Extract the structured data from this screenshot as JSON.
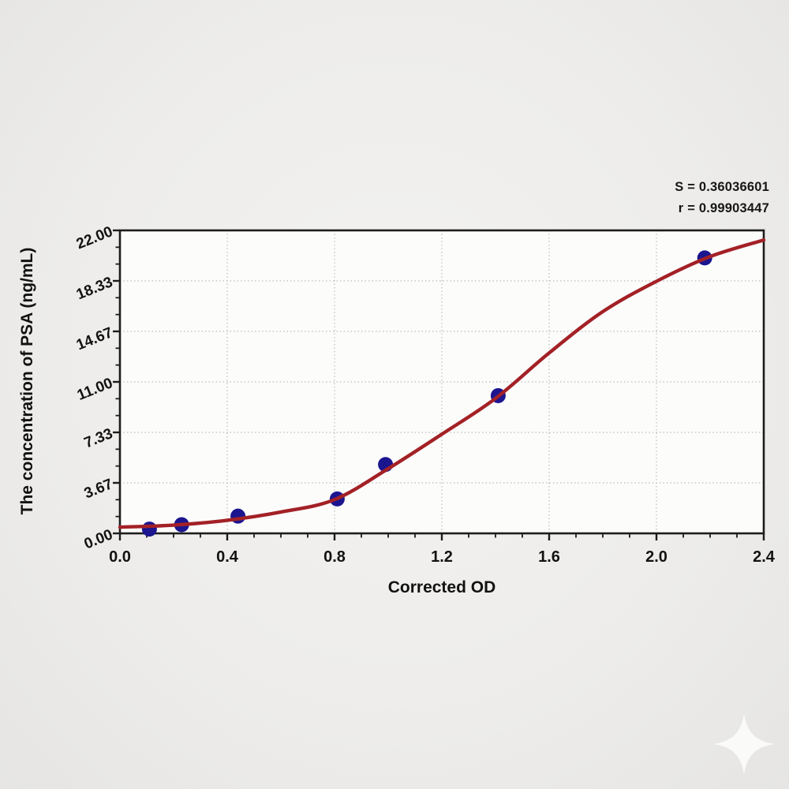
{
  "page": {
    "background": "#eeedeb"
  },
  "annotation": {
    "s_line": "S = 0.36036601",
    "r_line": "r = 0.99903447"
  },
  "chart_data": {
    "type": "scatter",
    "title": "",
    "xlabel": "Corrected OD",
    "ylabel": "The concentration of PSA (ng/mL)",
    "xlim": [
      0,
      2.4
    ],
    "ylim": [
      0,
      22
    ],
    "x_tick_values": [
      0,
      0.4,
      0.8,
      1.2,
      1.6,
      2.0,
      2.4
    ],
    "x_tick_labels": [
      "0.0",
      "0.4",
      "0.8",
      "1.2",
      "1.6",
      "2.0",
      "2.4"
    ],
    "x_minor_step": 0.1,
    "y_tick_values": [
      0,
      3.6667,
      7.3333,
      11,
      14.6667,
      18.3333,
      22
    ],
    "y_tick_labels": [
      "0.00",
      "3.67",
      "7.33",
      "11.00",
      "14.67",
      "18.33",
      "22.00"
    ],
    "y_minor_divisions_per_major": 3,
    "grid": {
      "show": true,
      "style": "dotted",
      "color": "#bdbdbd",
      "at": "major-ticks"
    },
    "legend": "none",
    "stats": {
      "S": "0.36036601",
      "r": "0.99903447"
    },
    "series": [
      {
        "name": "standard-points",
        "type": "scatter",
        "color": "#1b1590",
        "points": [
          [
            0.11,
            0.31
          ],
          [
            0.23,
            0.63
          ],
          [
            0.44,
            1.25
          ],
          [
            0.81,
            2.5
          ],
          [
            0.99,
            5.0
          ],
          [
            1.41,
            10.0
          ],
          [
            2.18,
            20.0
          ]
        ]
      },
      {
        "name": "4pl-fit-curve",
        "type": "line",
        "color": "#a32126",
        "points": [
          [
            0,
            0.45
          ],
          [
            0.2,
            0.6
          ],
          [
            0.4,
            0.95
          ],
          [
            0.6,
            1.55
          ],
          [
            0.8,
            2.45
          ],
          [
            1.0,
            4.7
          ],
          [
            1.2,
            7.2
          ],
          [
            1.4,
            9.8
          ],
          [
            1.6,
            13.1
          ],
          [
            1.8,
            16.1
          ],
          [
            2.0,
            18.3
          ],
          [
            2.2,
            20.1
          ],
          [
            2.4,
            21.3
          ]
        ]
      }
    ]
  },
  "watermark": {
    "icon": "sparkle-icon"
  }
}
